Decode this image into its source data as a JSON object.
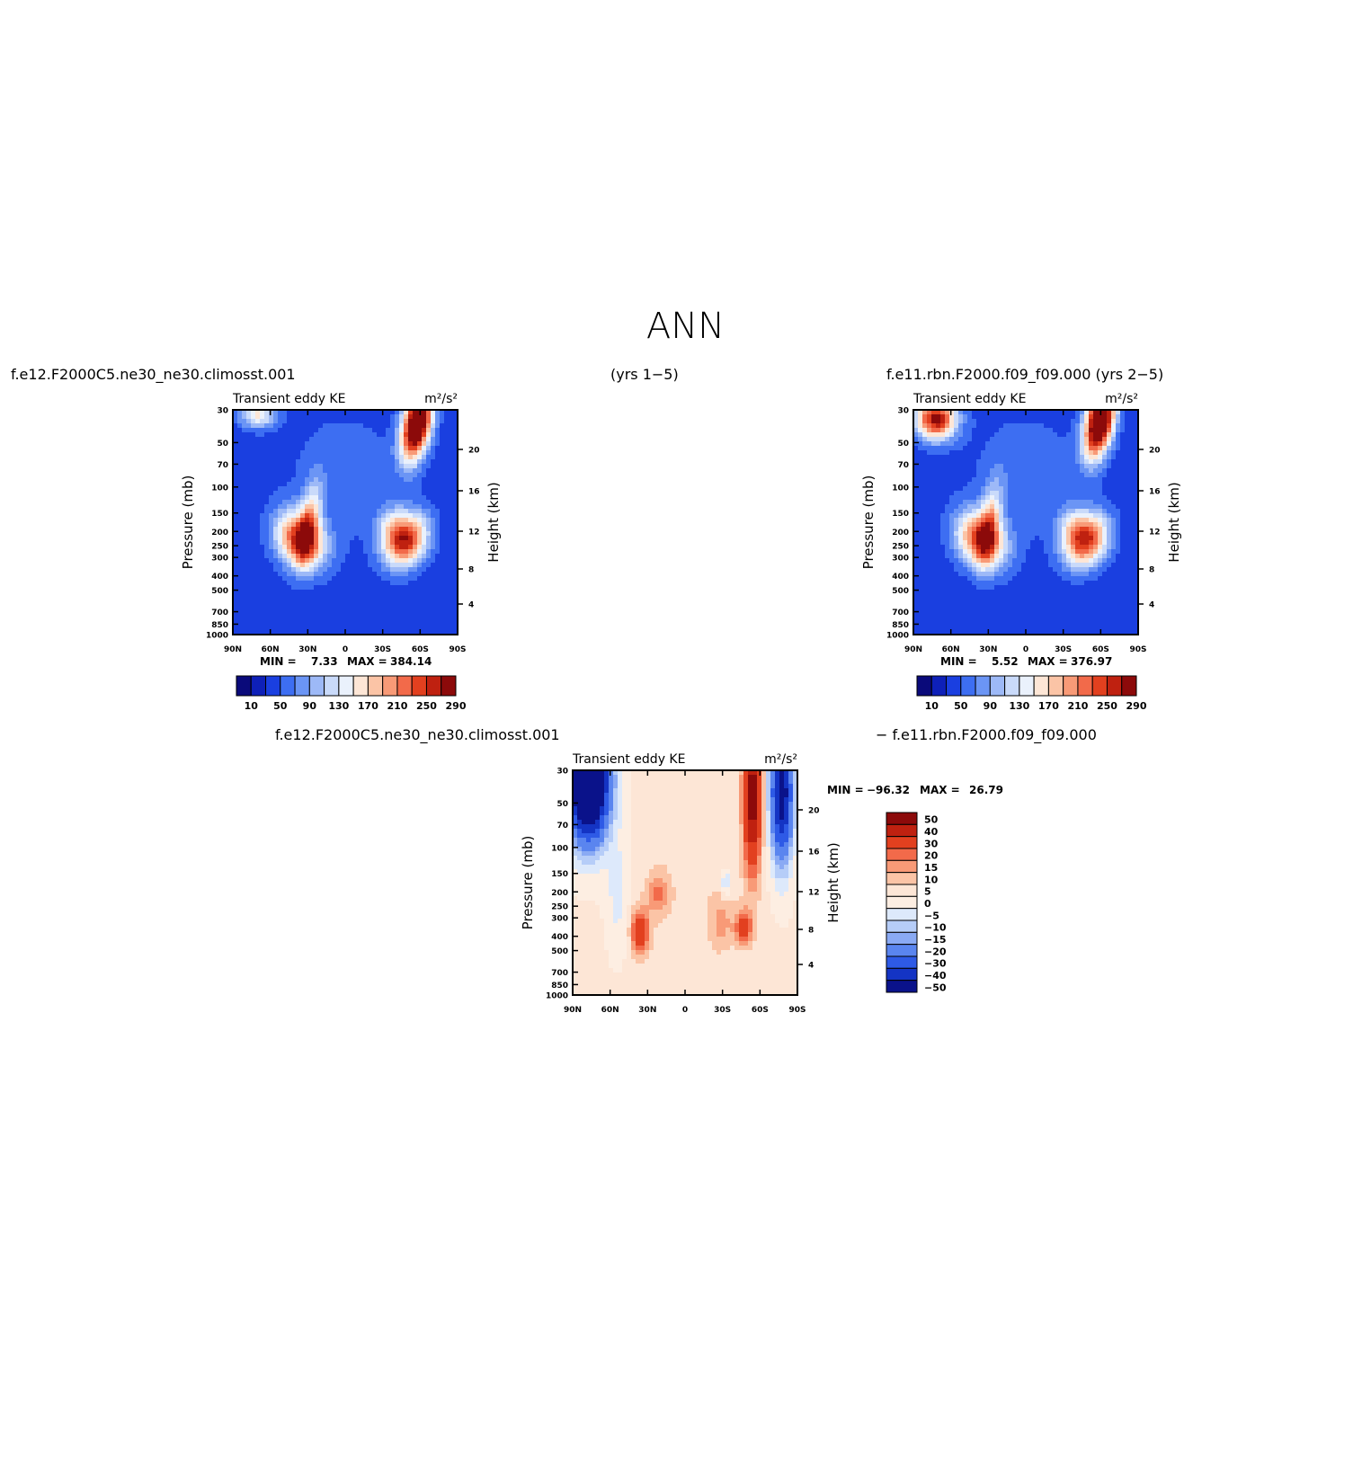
{
  "page": {
    "title": "ANN",
    "labels": {
      "case_top_left": "f.e12.F2000C5.ne30_ne30.climosst.001",
      "years_top_center": "(yrs 1−5)",
      "case_top_right": "f.e11.rbn.F2000.f09_f09.000  (yrs 2−5)",
      "case_diff_left": "f.e12.F2000C5.ne30_ne30.climosst.001",
      "case_diff_right": "− f.e11.rbn.F2000.f09_f09.000"
    }
  },
  "chart_data": [
    {
      "type": "heatmap",
      "title": "Transient eddy KE",
      "units": "m²/s²",
      "ylabel": "Pressure (mb)",
      "y2label": "Height (km)",
      "x_ticks": [
        "90N",
        "60N",
        "30N",
        "0",
        "30S",
        "60S",
        "90S"
      ],
      "x_values": [
        90,
        60,
        30,
        0,
        -30,
        -60,
        -90
      ],
      "y_ticks": [
        "30",
        "50",
        "70",
        "100",
        "150",
        "200",
        "250",
        "300",
        "400",
        "500",
        "700",
        "850",
        "1000"
      ],
      "y_values": [
        30,
        50,
        70,
        100,
        150,
        200,
        250,
        300,
        400,
        500,
        700,
        850,
        1000
      ],
      "y2_ticks": [
        "4",
        "8",
        "12",
        "16",
        "20"
      ],
      "min_label": "MIN =",
      "min_value": "7.33",
      "max_label": "MAX =",
      "max_value": "384.14",
      "colorbar_labels": [
        "10",
        "50",
        "90",
        "130",
        "170",
        "210",
        "250",
        "290"
      ],
      "colorbar_colors": [
        "#0a0a7a",
        "#0e20b8",
        "#1a3fe0",
        "#3d6ef2",
        "#6b95f5",
        "#9db9f7",
        "#c9dafa",
        "#eaf1fc",
        "#fde6d6",
        "#fbc4a6",
        "#f89a77",
        "#f26a4a",
        "#e2401f",
        "#bf2110",
        "#8c0a0a"
      ]
    },
    {
      "type": "heatmap",
      "title": "Transient eddy KE",
      "units": "m²/s²",
      "ylabel": "Pressure (mb)",
      "y2label": "Height (km)",
      "x_ticks": [
        "90N",
        "60N",
        "30N",
        "0",
        "30S",
        "60S",
        "90S"
      ],
      "x_values": [
        90,
        60,
        30,
        0,
        -30,
        -60,
        -90
      ],
      "y_ticks": [
        "30",
        "50",
        "70",
        "100",
        "150",
        "200",
        "250",
        "300",
        "400",
        "500",
        "700",
        "850",
        "1000"
      ],
      "y_values": [
        30,
        50,
        70,
        100,
        150,
        200,
        250,
        300,
        400,
        500,
        700,
        850,
        1000
      ],
      "y2_ticks": [
        "4",
        "8",
        "12",
        "16",
        "20"
      ],
      "min_label": "MIN =",
      "min_value": "5.52",
      "max_label": "MAX =",
      "max_value": "376.97",
      "colorbar_labels": [
        "10",
        "50",
        "90",
        "130",
        "170",
        "210",
        "250",
        "290"
      ],
      "colorbar_colors": [
        "#0a0a7a",
        "#0e20b8",
        "#1a3fe0",
        "#3d6ef2",
        "#6b95f5",
        "#9db9f7",
        "#c9dafa",
        "#eaf1fc",
        "#fde6d6",
        "#fbc4a6",
        "#f89a77",
        "#f26a4a",
        "#e2401f",
        "#bf2110",
        "#8c0a0a"
      ]
    },
    {
      "type": "heatmap",
      "title": "Transient eddy KE",
      "units": "m²/s²",
      "ylabel": "Pressure (mb)",
      "y2label": "Height (km)",
      "x_ticks": [
        "90N",
        "60N",
        "30N",
        "0",
        "30S",
        "60S",
        "90S"
      ],
      "x_values": [
        90,
        60,
        30,
        0,
        -30,
        -60,
        -90
      ],
      "y_ticks": [
        "30",
        "50",
        "70",
        "100",
        "150",
        "200",
        "250",
        "300",
        "400",
        "500",
        "700",
        "850",
        "1000"
      ],
      "y_values": [
        30,
        50,
        70,
        100,
        150,
        200,
        250,
        300,
        400,
        500,
        700,
        850,
        1000
      ],
      "y2_ticks": [
        "4",
        "8",
        "12",
        "16",
        "20"
      ],
      "min_label": "MIN =",
      "min_value": "−96.32",
      "max_label": "MAX =",
      "max_value": "26.79",
      "colorbar_labels": [
        "50",
        "40",
        "30",
        "20",
        "15",
        "10",
        "5",
        "0",
        "−5",
        "−10",
        "−15",
        "−20",
        "−30",
        "−40",
        "−50"
      ],
      "colorbar_colors": [
        "#8c0a0a",
        "#bf2110",
        "#e2401f",
        "#f26a4a",
        "#f89a77",
        "#fbc4a6",
        "#fde6d6",
        "#fdeee2",
        "#dde9fb",
        "#b6cdf8",
        "#8aaaf4",
        "#5a85ef",
        "#2e5ae6",
        "#1434c4",
        "#0a128a"
      ]
    }
  ]
}
